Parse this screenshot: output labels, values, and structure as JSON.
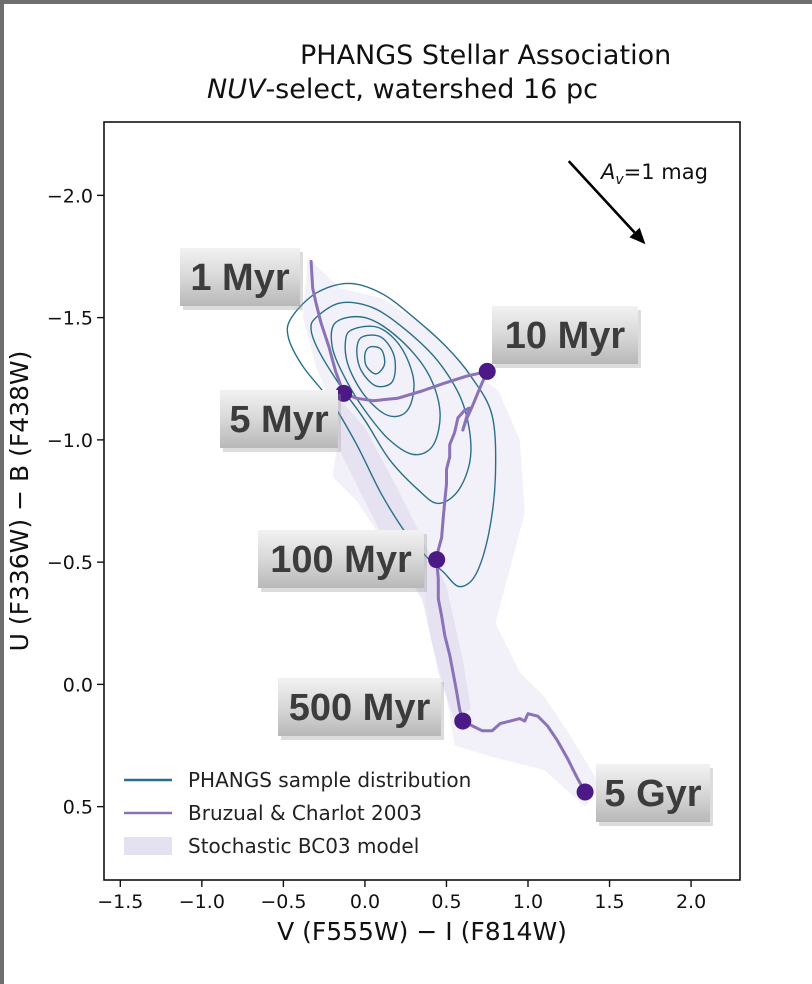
{
  "chart_data": {
    "type": "line",
    "title": "PHANGS Stellar Association",
    "subtitle_italic": "NUV",
    "subtitle_rest": "-select, watershed 16 pc",
    "xlabel": "V (F555W) − I (F814W)",
    "ylabel": "U (F336W) − B (F438W)",
    "xlim": [
      -1.6,
      2.3
    ],
    "ylim": [
      0.8,
      -2.3
    ],
    "y_inverted": true,
    "xticks": [
      -1.5,
      -1.0,
      -0.5,
      0.0,
      0.5,
      1.0,
      1.5,
      2.0
    ],
    "xtick_labels": [
      "−1.5",
      "−1.0",
      "−0.5",
      "0.0",
      "0.5",
      "1.0",
      "1.5",
      "2.0"
    ],
    "yticks": [
      -2.0,
      -1.5,
      -1.0,
      -0.5,
      0.0,
      0.5
    ],
    "ytick_labels": [
      "−2.0",
      "−1.5",
      "−1.0",
      "−0.5",
      "0.0",
      "0.5"
    ],
    "grid": false,
    "legend_position": "lower-left",
    "legend": [
      {
        "label": "PHANGS sample distribution",
        "kind": "line",
        "color": "#2a6f8a"
      },
      {
        "label": "Bruzual & Charlot 2003",
        "kind": "line",
        "color": "#8a72b8"
      },
      {
        "label": "Stochastic BC03 model",
        "kind": "patch",
        "color": "#e4e1f1"
      }
    ],
    "colors": {
      "contour": "#2a6f8a",
      "track": "#8a72b8",
      "marker": "#4b1a87",
      "stochastic": "#d9d4ec"
    },
    "series": [
      {
        "name": "Bruzual & Charlot 2003",
        "points": [
          [
            -0.33,
            -1.73
          ],
          [
            -0.32,
            -1.62
          ],
          [
            -0.3,
            -1.56
          ],
          [
            -0.27,
            -1.48
          ],
          [
            -0.22,
            -1.38
          ],
          [
            -0.18,
            -1.28
          ],
          [
            -0.13,
            -1.19
          ],
          [
            -0.05,
            -1.17
          ],
          [
            0.05,
            -1.16
          ],
          [
            0.2,
            -1.17
          ],
          [
            0.35,
            -1.2
          ],
          [
            0.48,
            -1.23
          ],
          [
            0.62,
            -1.26
          ],
          [
            0.75,
            -1.28
          ],
          [
            0.71,
            -1.22
          ],
          [
            0.66,
            -1.14
          ],
          [
            0.62,
            -1.08
          ],
          [
            0.6,
            -1.04
          ],
          [
            0.64,
            -1.13
          ],
          [
            0.61,
            -1.12
          ],
          [
            0.57,
            -1.09
          ],
          [
            0.55,
            -1.03
          ],
          [
            0.52,
            -0.98
          ],
          [
            0.52,
            -0.93
          ],
          [
            0.5,
            -0.88
          ],
          [
            0.5,
            -0.82
          ],
          [
            0.49,
            -0.75
          ],
          [
            0.48,
            -0.68
          ],
          [
            0.47,
            -0.6
          ],
          [
            0.45,
            -0.55
          ],
          [
            0.44,
            -0.51
          ],
          [
            0.45,
            -0.43
          ],
          [
            0.45,
            -0.35
          ],
          [
            0.47,
            -0.28
          ],
          [
            0.49,
            -0.2
          ],
          [
            0.52,
            -0.12
          ],
          [
            0.54,
            -0.05
          ],
          [
            0.56,
            0.02
          ],
          [
            0.58,
            0.1
          ],
          [
            0.6,
            0.15
          ],
          [
            0.66,
            0.17
          ],
          [
            0.72,
            0.19
          ],
          [
            0.78,
            0.19
          ],
          [
            0.83,
            0.16
          ],
          [
            0.89,
            0.15
          ],
          [
            0.95,
            0.14
          ],
          [
            0.98,
            0.15
          ],
          [
            1.0,
            0.12
          ],
          [
            1.06,
            0.13
          ],
          [
            1.12,
            0.17
          ],
          [
            1.18,
            0.23
          ],
          [
            1.24,
            0.3
          ],
          [
            1.3,
            0.38
          ],
          [
            1.35,
            0.44
          ]
        ]
      }
    ],
    "age_markers": [
      {
        "label": "1 Myr",
        "x": -0.33,
        "y": -1.73,
        "show_point": false
      },
      {
        "label": "5 Myr",
        "x": -0.13,
        "y": -1.19,
        "show_point": true
      },
      {
        "label": "10 Myr",
        "x": 0.75,
        "y": -1.28,
        "show_point": true
      },
      {
        "label": "100 Myr",
        "x": 0.44,
        "y": -0.51,
        "show_point": true
      },
      {
        "label": "500 Myr",
        "x": 0.6,
        "y": 0.15,
        "show_point": true
      },
      {
        "label": "5 Gyr",
        "x": 1.35,
        "y": 0.44,
        "show_point": true
      }
    ],
    "contours": [
      {
        "level": 1,
        "points": [
          [
            -0.45,
            -1.5
          ],
          [
            -0.3,
            -1.6
          ],
          [
            -0.1,
            -1.64
          ],
          [
            0.1,
            -1.6
          ],
          [
            0.3,
            -1.5
          ],
          [
            0.5,
            -1.38
          ],
          [
            0.65,
            -1.26
          ],
          [
            0.78,
            -1.1
          ],
          [
            0.8,
            -0.85
          ],
          [
            0.76,
            -0.62
          ],
          [
            0.68,
            -0.45
          ],
          [
            0.58,
            -0.4
          ],
          [
            0.48,
            -0.46
          ],
          [
            0.38,
            -0.52
          ],
          [
            0.25,
            -0.62
          ],
          [
            0.1,
            -0.78
          ],
          [
            -0.05,
            -0.98
          ],
          [
            -0.2,
            -1.15
          ],
          [
            -0.38,
            -1.3
          ],
          [
            -0.47,
            -1.42
          ]
        ]
      },
      {
        "level": 2,
        "points": [
          [
            -0.3,
            -1.5
          ],
          [
            -0.15,
            -1.56
          ],
          [
            0.05,
            -1.54
          ],
          [
            0.25,
            -1.45
          ],
          [
            0.45,
            -1.32
          ],
          [
            0.6,
            -1.15
          ],
          [
            0.65,
            -0.95
          ],
          [
            0.58,
            -0.8
          ],
          [
            0.45,
            -0.74
          ],
          [
            0.32,
            -0.8
          ],
          [
            0.15,
            -0.92
          ],
          [
            0.0,
            -1.08
          ],
          [
            -0.15,
            -1.22
          ],
          [
            -0.28,
            -1.36
          ],
          [
            -0.33,
            -1.45
          ]
        ]
      },
      {
        "level": 3,
        "points": [
          [
            -0.18,
            -1.48
          ],
          [
            0.0,
            -1.5
          ],
          [
            0.2,
            -1.42
          ],
          [
            0.38,
            -1.28
          ],
          [
            0.46,
            -1.12
          ],
          [
            0.42,
            -0.98
          ],
          [
            0.3,
            -0.94
          ],
          [
            0.15,
            -1.0
          ],
          [
            0.0,
            -1.12
          ],
          [
            -0.12,
            -1.25
          ],
          [
            -0.2,
            -1.38
          ]
        ]
      },
      {
        "level": 4,
        "points": [
          [
            -0.08,
            -1.45
          ],
          [
            0.08,
            -1.46
          ],
          [
            0.22,
            -1.38
          ],
          [
            0.3,
            -1.24
          ],
          [
            0.26,
            -1.12
          ],
          [
            0.14,
            -1.1
          ],
          [
            0.0,
            -1.18
          ],
          [
            -0.1,
            -1.3
          ],
          [
            -0.12,
            -1.4
          ]
        ]
      },
      {
        "level": 5,
        "points": [
          [
            -0.02,
            -1.42
          ],
          [
            0.1,
            -1.42
          ],
          [
            0.18,
            -1.34
          ],
          [
            0.17,
            -1.24
          ],
          [
            0.07,
            -1.22
          ],
          [
            -0.02,
            -1.28
          ],
          [
            -0.05,
            -1.36
          ]
        ]
      },
      {
        "level": 6,
        "points": [
          [
            0.03,
            -1.38
          ],
          [
            0.1,
            -1.37
          ],
          [
            0.12,
            -1.31
          ],
          [
            0.07,
            -1.27
          ],
          [
            0.01,
            -1.3
          ],
          [
            0.0,
            -1.35
          ]
        ]
      }
    ],
    "stochastic_regions": [
      {
        "points": [
          [
            -0.35,
            -1.75
          ],
          [
            -0.28,
            -1.7
          ],
          [
            -0.15,
            -1.62
          ],
          [
            0.1,
            -1.58
          ],
          [
            0.4,
            -1.45
          ],
          [
            0.62,
            -1.3
          ],
          [
            0.82,
            -1.2
          ],
          [
            0.95,
            -1.0
          ],
          [
            0.98,
            -0.7
          ],
          [
            0.88,
            -0.45
          ],
          [
            0.8,
            -0.25
          ],
          [
            0.95,
            -0.05
          ],
          [
            1.1,
            0.05
          ],
          [
            1.25,
            0.2
          ],
          [
            1.45,
            0.42
          ],
          [
            1.35,
            0.5
          ],
          [
            1.1,
            0.35
          ],
          [
            0.8,
            0.3
          ],
          [
            0.55,
            0.25
          ],
          [
            0.5,
            0.05
          ],
          [
            0.4,
            -0.2
          ],
          [
            0.35,
            -0.45
          ],
          [
            0.1,
            -0.6
          ],
          [
            -0.05,
            -0.75
          ],
          [
            -0.2,
            -0.85
          ],
          [
            -0.15,
            -1.05
          ],
          [
            -0.3,
            -1.3
          ],
          [
            -0.38,
            -1.5
          ]
        ],
        "opacity": 0.35
      },
      {
        "points": [
          [
            -0.2,
            -1.2
          ],
          [
            0.0,
            -1.05
          ],
          [
            0.2,
            -0.8
          ],
          [
            0.35,
            -0.6
          ],
          [
            0.5,
            -0.4
          ],
          [
            0.6,
            -0.1
          ],
          [
            0.65,
            0.1
          ],
          [
            0.55,
            0.15
          ],
          [
            0.45,
            -0.05
          ],
          [
            0.35,
            -0.35
          ],
          [
            0.15,
            -0.55
          ],
          [
            0.0,
            -0.75
          ],
          [
            -0.15,
            -0.95
          ]
        ],
        "opacity": 0.5
      }
    ],
    "annotations": [
      {
        "kind": "reddening-arrow",
        "from": [
          1.25,
          -2.14
        ],
        "to": [
          1.72,
          -1.8
        ],
        "label_italic": "A",
        "label_sub": "v",
        "label_rest": "=1 mag"
      }
    ]
  }
}
